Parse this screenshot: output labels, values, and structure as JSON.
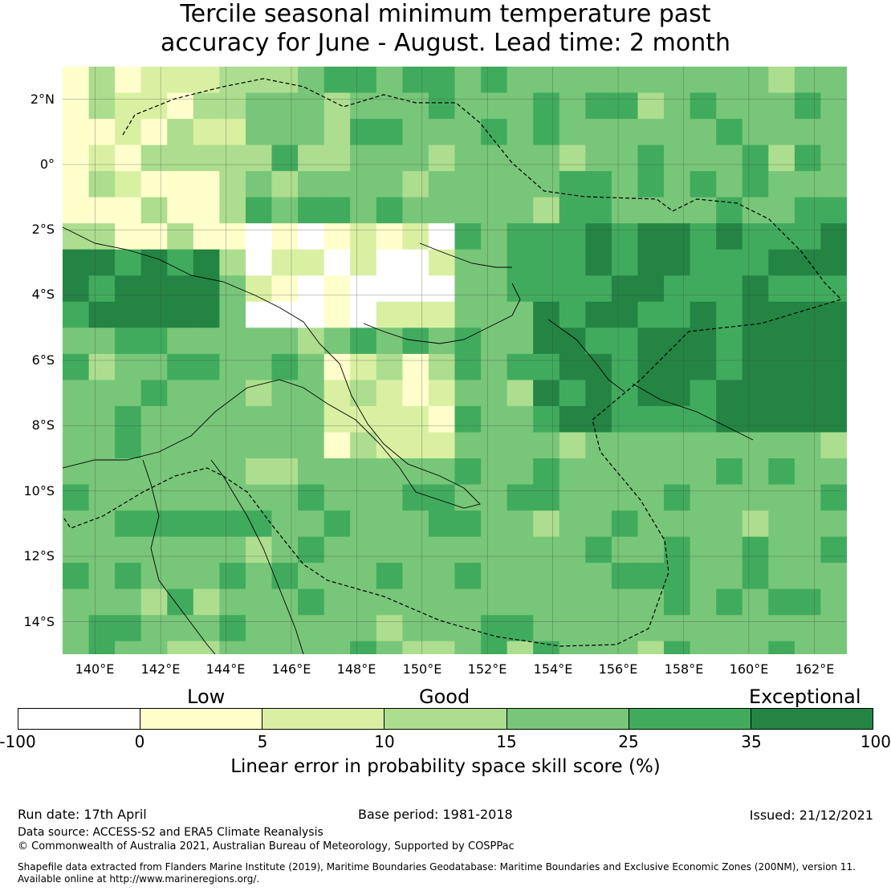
{
  "title_line1": "Tercile seasonal minimum temperature past",
  "title_line2": "accuracy for June - August. Lead time: 2 month",
  "map": {
    "lat_labels": [
      "2°N",
      "0°",
      "2°S",
      "4°S",
      "6°S",
      "8°S",
      "10°S",
      "12°S",
      "14°S"
    ],
    "lon_labels": [
      "140°E",
      "142°E",
      "144°E",
      "146°E",
      "148°E",
      "150°E",
      "152°E",
      "154°E",
      "156°E",
      "158°E",
      "160°E",
      "162°E"
    ],
    "extent": {
      "lon_min": 139.0,
      "lon_max": 163.0,
      "lat_min": -15.0,
      "lat_max": 3.0
    },
    "gridlines": true,
    "eez_boundary": "dashed"
  },
  "legend": {
    "categories": [
      "Low",
      "Good",
      "Exceptional"
    ],
    "ticks": [
      "-100",
      "0",
      "5",
      "10",
      "15",
      "25",
      "35",
      "100"
    ],
    "colors": [
      "#ffffff",
      "#ffffcc",
      "#d9f0a3",
      "#addd8e",
      "#78c679",
      "#41ab5d",
      "#238443"
    ],
    "label": "Linear error in probability space skill score (%)"
  },
  "footer": {
    "run_date": "Run date: 17th April",
    "base_period": "Base period: 1981-2018",
    "issued": "Issued: 21/12/2021",
    "data_source": "Data source: ACCESS-S2 and ERA5 Climate Reanalysis",
    "copyright": "© Commonwealth of Australia 2021, Australian Bureau of Meteorology, Supported by COSPPac",
    "shapefile_line1": "Shapefile data extracted from Flanders Marine Institute (2019), Maritime Boundaries Geodatabase: Maritime Boundaries and Exclusive Economic Zones (200NM), version 11.",
    "shapefile_line2": "Available online at http://www.marineregions.org/."
  }
}
